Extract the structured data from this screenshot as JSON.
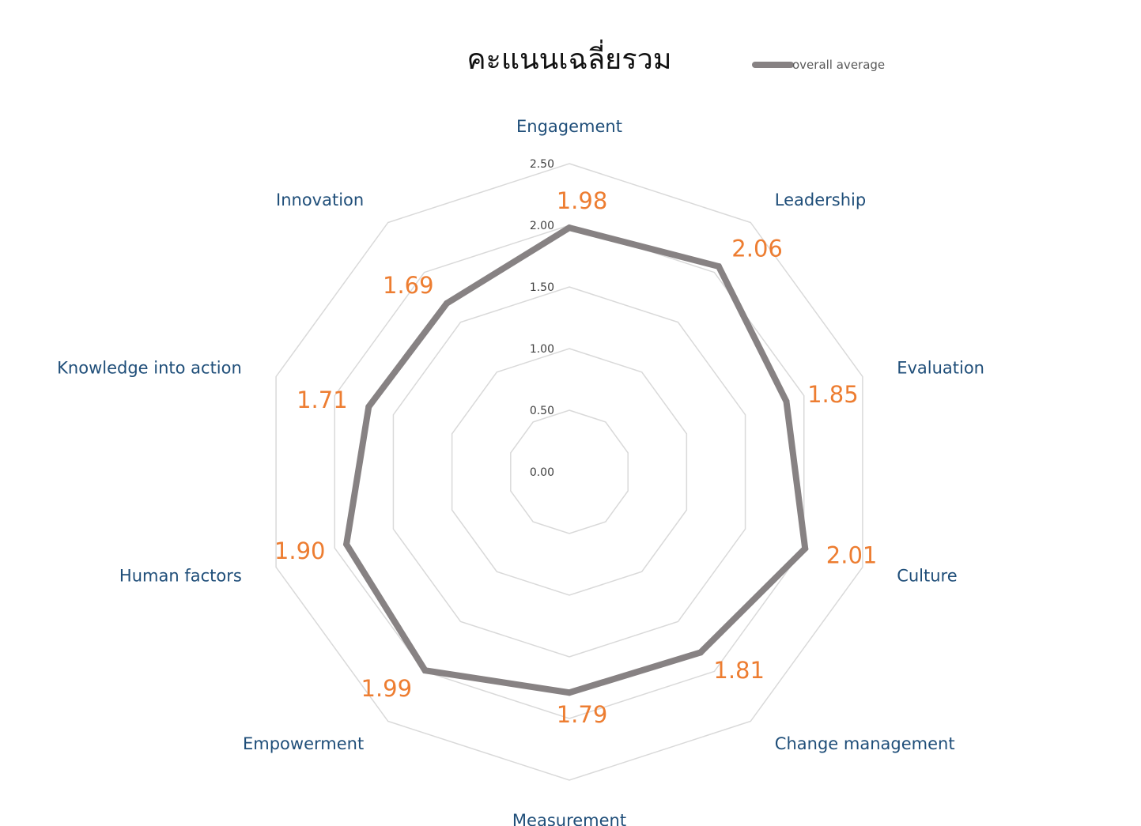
{
  "chart_data": {
    "type": "radar",
    "title": "คะแนนเฉลี่ยรวม",
    "categories": [
      "Engagement",
      "Leadership",
      "Evaluation",
      "Culture",
      "Change management",
      "Measurement",
      "Empowerment",
      "Human factors",
      "Knowledge into action",
      "Innovation"
    ],
    "series": [
      {
        "name": "overall average",
        "values": [
          1.98,
          2.06,
          1.85,
          2.01,
          1.81,
          1.79,
          1.99,
          1.9,
          1.71,
          1.69
        ],
        "labels": [
          "1.98",
          "2.06",
          "1.85",
          "2.01",
          "1.81",
          "1.79",
          "1.99",
          "1.90",
          "1.71",
          "1.69"
        ]
      }
    ],
    "ticks": [
      "0.00",
      "0.50",
      "1.00",
      "1.50",
      "2.00",
      "2.50"
    ],
    "tick_values": [
      0,
      0.5,
      1,
      1.5,
      2,
      2.5
    ],
    "rlim": [
      0,
      2.5
    ],
    "grid": true,
    "legend_position": "top-right",
    "colors": {
      "series_line": "#878283",
      "grid": "#D9D9D9",
      "category_label": "#1F4E79",
      "data_label": "#ED7D31",
      "title": "#111111",
      "tick_label": "#404040",
      "legend_text": "#595959"
    }
  }
}
